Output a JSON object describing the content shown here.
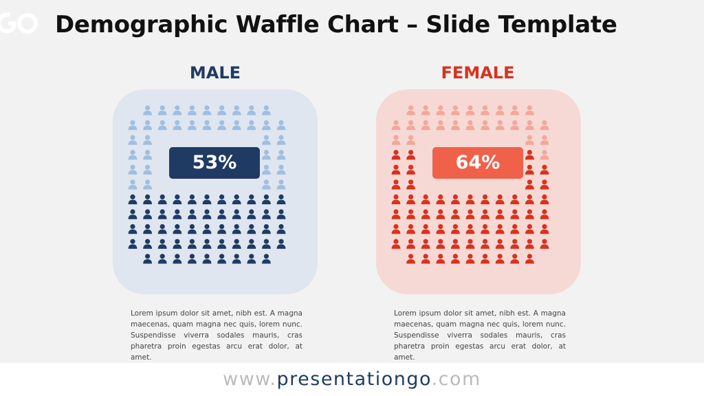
{
  "title": "Demographic Waffle Chart – Slide Template",
  "footer": {
    "prefix": "www.",
    "brand": "presentationgo",
    "suffix": ".com"
  },
  "chart_data": [
    {
      "type": "waffle",
      "title": "MALE",
      "value_label": "53%",
      "filled_count": 53,
      "colors": {
        "title": "#1f3b64",
        "panel": "#dfe6f0",
        "filled": "#1f3b64",
        "empty": "#9fbfe0",
        "badge": "#1f3b64"
      },
      "description": "Lorem ipsum dolor sit amet, nibh est. A magna maecenas, quam magna nec quis, lorem nunc. Suspendisse viverra sodales mauris, cras pharetra proin egestas arcu erat dolor, at amet."
    },
    {
      "type": "waffle",
      "title": "FEMALE",
      "value_label": "64%",
      "filled_count": 64,
      "colors": {
        "title": "#d9321f",
        "panel": "#f6d9d4",
        "filled": "#d9321f",
        "empty": "#f3a89a",
        "badge": "#f0614a"
      },
      "description": "Lorem ipsum dolor sit amet, nibh est. A magna maecenas, quam magna nec quis, lorem nunc. Suspendisse viverra sodales mauris, cras pharetra proin egestas arcu erat dolor, at amet."
    }
  ]
}
